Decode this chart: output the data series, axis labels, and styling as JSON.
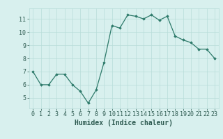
{
  "x": [
    0,
    1,
    2,
    3,
    4,
    5,
    6,
    7,
    8,
    9,
    10,
    11,
    12,
    13,
    14,
    15,
    16,
    17,
    18,
    19,
    20,
    21,
    22,
    23
  ],
  "y": [
    7.0,
    6.0,
    6.0,
    6.8,
    6.8,
    6.0,
    5.5,
    4.6,
    5.6,
    7.7,
    10.5,
    10.3,
    11.3,
    11.2,
    11.0,
    11.3,
    10.9,
    11.2,
    9.7,
    9.4,
    9.2,
    8.7,
    8.7,
    8.0
  ],
  "line_color": "#2d7a6a",
  "marker": "D",
  "marker_size": 1.8,
  "bg_color": "#d8f0ee",
  "grid_color": "#b8ddd9",
  "xlabel": "Humidex (Indice chaleur)",
  "xlabel_color": "#2d5a50",
  "xlabel_fontsize": 7,
  "tick_color": "#2d5a50",
  "tick_fontsize": 6,
  "ylim": [
    4.2,
    11.8
  ],
  "yticks": [
    5,
    6,
    7,
    8,
    9,
    10,
    11
  ],
  "xlim": [
    -0.5,
    23.5
  ],
  "xticks": [
    0,
    1,
    2,
    3,
    4,
    5,
    6,
    7,
    8,
    9,
    10,
    11,
    12,
    13,
    14,
    15,
    16,
    17,
    18,
    19,
    20,
    21,
    22,
    23
  ]
}
